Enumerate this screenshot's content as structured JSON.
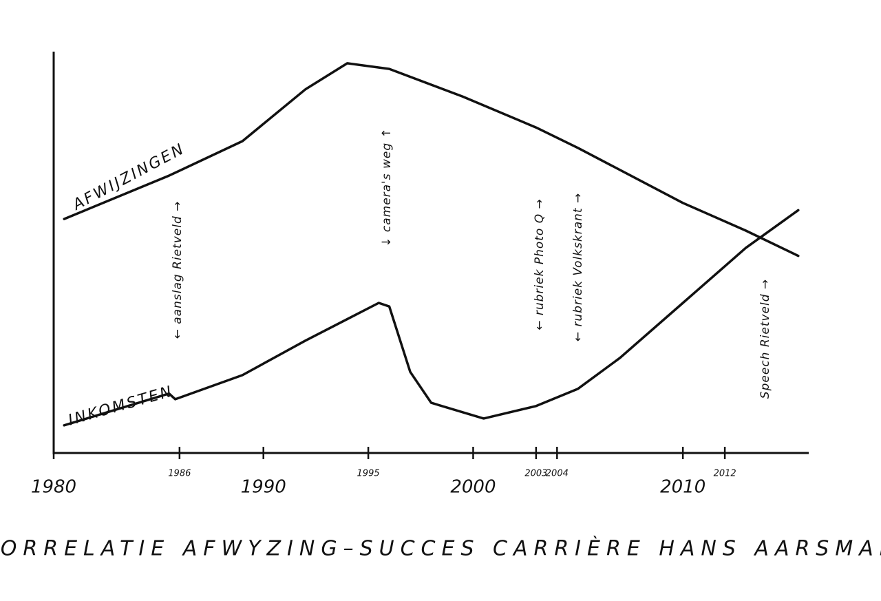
{
  "chart_data": {
    "type": "line",
    "title": "CORRELATIE AFWYZING–SUCCES CARRIÈRE HANS AARSMAN",
    "xlim": [
      1980,
      2016
    ],
    "xticks": [
      1980,
      1986,
      1990,
      1995,
      2000,
      2003,
      2004,
      2010,
      2012
    ],
    "ylim": [
      0,
      100
    ],
    "color": "#111111",
    "series": [
      {
        "name": "AFWIJZINGEN",
        "x": [
          1980.5,
          1985.5,
          1989,
          1992,
          1994,
          1996,
          1999.5,
          2003,
          2005,
          2010,
          2013,
          2015.5
        ],
        "values": [
          58.3,
          69.1,
          77.7,
          90.6,
          97.1,
          95.7,
          88.8,
          81.1,
          76.0,
          62.3,
          55.4,
          49.1
        ]
      },
      {
        "name": "INKOMSTEN",
        "x": [
          1980.5,
          1985.5,
          1985.8,
          1989,
          1992,
          1995.5,
          1996,
          1997,
          1998,
          2000.5,
          2003,
          2005,
          2007,
          2010,
          2013,
          2015.5
        ],
        "values": [
          6.9,
          14.8,
          13.4,
          19.4,
          28.0,
          37.4,
          36.5,
          20.2,
          12.5,
          8.6,
          11.7,
          16.0,
          23.7,
          37.4,
          51.1,
          60.5
        ]
      }
    ],
    "annotations": [
      "← aanslag Rietveld →",
      "↓ camera's weg ↑",
      "← rubriek Photo Q →",
      "← rubriek Volkskrant →",
      "Speech Rietveld →"
    ]
  }
}
